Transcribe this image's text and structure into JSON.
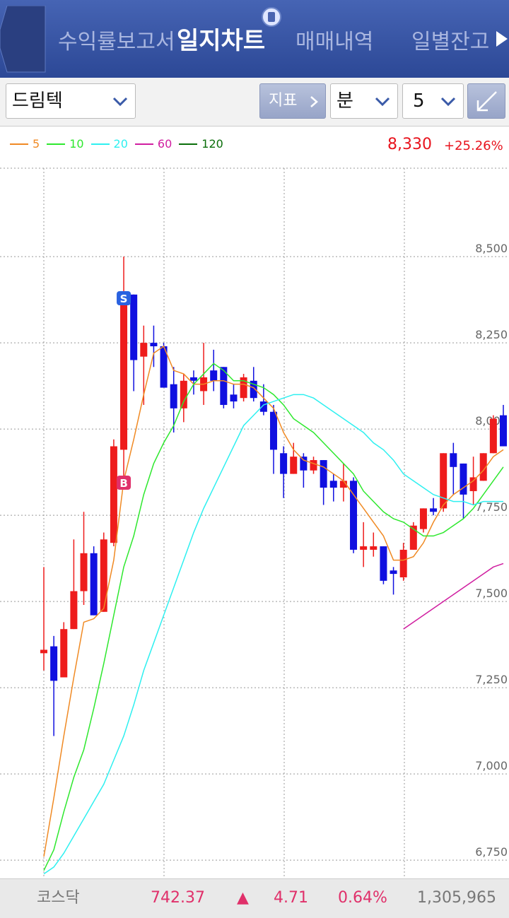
{
  "header": {
    "tabs": [
      "수익률보고서",
      "일지차트",
      "매매내역",
      "일별잔고"
    ]
  },
  "controls": {
    "stock": "드림텍",
    "indicator": "지표",
    "period_unit": "분",
    "period": "5"
  },
  "chart_data": {
    "type": "candlestick",
    "price": "8,330",
    "change": "+25.26%",
    "up_color": "#ee1c1c",
    "down_color": "#1010e0",
    "ylim": [
      6697,
      8865
    ],
    "yticks": [
      {
        "value": 6750,
        "label": "6,750"
      },
      {
        "value": 7000,
        "label": "7,000"
      },
      {
        "value": 7250,
        "label": "7,250"
      },
      {
        "value": 7500,
        "label": "7,500"
      },
      {
        "value": 7750,
        "label": "7,750"
      },
      {
        "value": 8000,
        "label": "8,000"
      },
      {
        "value": 8250,
        "label": "8,250"
      },
      {
        "value": 8500,
        "label": "8,500"
      }
    ],
    "grid": true,
    "markers": {
      "sell": "S",
      "buy": "B"
    },
    "open": [
      7350,
      7370,
      7280,
      7420,
      7530,
      7640,
      7470,
      7670,
      7940,
      8390,
      8210,
      8250,
      8240,
      8130,
      8060,
      8150,
      8110,
      8170,
      8180,
      8100,
      8090,
      8140,
      8080,
      8050,
      7930,
      7870,
      7920,
      7880,
      7910,
      7850,
      7830,
      7850,
      7650,
      7650,
      7660,
      7590,
      7570,
      7650,
      7710,
      7770,
      7770,
      7930,
      7900,
      7820,
      7850,
      7930,
      8040
    ],
    "high": [
      7600,
      7400,
      7440,
      7680,
      7760,
      7660,
      7700,
      7970,
      8500,
      8390,
      8300,
      8300,
      8250,
      8180,
      8160,
      8170,
      8250,
      8230,
      8180,
      8130,
      8160,
      8180,
      8130,
      8070,
      7950,
      7960,
      7930,
      7920,
      7910,
      7870,
      7900,
      7860,
      7730,
      7700,
      7660,
      7600,
      7670,
      7730,
      7770,
      7800,
      7930,
      7960,
      7900,
      7920,
      7930,
      8040,
      8070
    ],
    "low": [
      7300,
      7110,
      7280,
      7420,
      7490,
      7460,
      7470,
      7660,
      7850,
      8110,
      8070,
      8180,
      8120,
      7990,
      8020,
      8100,
      8070,
      8110,
      8060,
      8060,
      8080,
      8080,
      8040,
      7870,
      7800,
      7870,
      7830,
      7870,
      7780,
      7790,
      7790,
      7640,
      7600,
      7630,
      7550,
      7520,
      7560,
      7650,
      7700,
      7750,
      7760,
      7810,
      7740,
      7780,
      7850,
      7930,
      7950
    ],
    "close": [
      7360,
      7270,
      7420,
      7530,
      7640,
      7460,
      7680,
      7950,
      8380,
      8200,
      8250,
      8240,
      8120,
      8060,
      8140,
      8140,
      8150,
      8140,
      8070,
      8080,
      8150,
      8090,
      8050,
      7940,
      7870,
      7920,
      7880,
      7910,
      7830,
      7830,
      7850,
      7650,
      7660,
      7660,
      7560,
      7580,
      7650,
      7720,
      7770,
      7760,
      7930,
      7890,
      7810,
      7860,
      7930,
      8030,
      7950
    ],
    "series": [
      {
        "name": "5",
        "color": "#f08a24",
        "values": [
          6760,
          6930,
          7110,
          7280,
          7440,
          7450,
          7480,
          7620,
          7850,
          7970,
          8100,
          8220,
          8240,
          8170,
          8160,
          8130,
          8130,
          8140,
          8140,
          8130,
          8130,
          8120,
          8090,
          8060,
          7990,
          7940,
          7910,
          7900,
          7890,
          7870,
          7850,
          7810,
          7770,
          7730,
          7690,
          7620,
          7620,
          7630,
          7670,
          7730,
          7780,
          7810,
          7830,
          7850,
          7880,
          7920,
          7940
        ]
      },
      {
        "name": "10",
        "color": "#2ee82e",
        "values": [
          6720,
          6780,
          6890,
          6990,
          7070,
          7190,
          7320,
          7460,
          7600,
          7690,
          7810,
          7900,
          7960,
          8010,
          8080,
          8130,
          8160,
          8190,
          8170,
          8140,
          8140,
          8130,
          8120,
          8100,
          8070,
          8030,
          8010,
          7990,
          7960,
          7930,
          7900,
          7870,
          7820,
          7790,
          7760,
          7740,
          7730,
          7710,
          7690,
          7690,
          7700,
          7720,
          7740,
          7770,
          7810,
          7850,
          7890
        ]
      },
      {
        "name": "20",
        "color": "#2ef0f0",
        "values": [
          6710,
          6730,
          6770,
          6820,
          6870,
          6920,
          6970,
          7040,
          7110,
          7200,
          7300,
          7380,
          7460,
          7540,
          7620,
          7700,
          7770,
          7830,
          7890,
          7950,
          8010,
          8040,
          8070,
          8080,
          8090,
          8100,
          8100,
          8090,
          8070,
          8050,
          8030,
          8010,
          7990,
          7960,
          7940,
          7910,
          7870,
          7850,
          7830,
          7810,
          7800,
          7790,
          7790,
          7780,
          7790,
          7790,
          7790
        ]
      },
      {
        "name": "60",
        "color": "#d01ea0",
        "values": [
          null,
          null,
          null,
          null,
          null,
          null,
          null,
          null,
          null,
          null,
          null,
          null,
          null,
          null,
          null,
          null,
          null,
          null,
          null,
          null,
          null,
          null,
          null,
          null,
          null,
          null,
          null,
          null,
          null,
          null,
          null,
          null,
          null,
          null,
          null,
          null,
          7420,
          7440,
          7460,
          7480,
          7500,
          7520,
          7540,
          7560,
          7580,
          7600,
          7610
        ]
      },
      {
        "name": "120",
        "color": "#0a6e0a",
        "values": [
          null,
          null,
          null,
          null,
          null,
          null,
          null,
          null,
          null,
          null,
          null,
          null,
          null,
          null,
          null,
          null,
          null,
          null,
          null,
          null,
          null,
          null,
          null,
          null,
          null,
          null,
          null,
          null,
          null,
          null,
          null,
          null,
          null,
          null,
          null,
          null,
          null,
          null,
          null,
          null,
          null,
          null,
          null,
          null,
          null,
          null,
          null
        ]
      }
    ]
  },
  "footer": {
    "index": "코스닥",
    "value": "742.37",
    "arrow": "▲",
    "change": "4.71",
    "rate": "0.64%",
    "volume": "1,305,965"
  }
}
